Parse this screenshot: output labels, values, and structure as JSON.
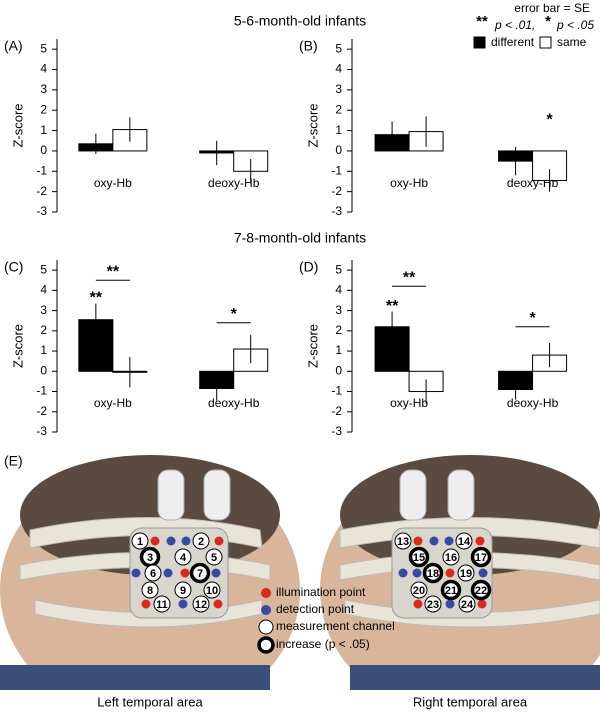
{
  "header": {
    "error_note": "error bar = SE",
    "double_star": "**",
    "double_star_text": "p < .01,",
    "star": "*",
    "star_text": "p < .05"
  },
  "legend": [
    {
      "name": "different",
      "color": "#000000"
    },
    {
      "name": "same",
      "color": "#ffffff"
    }
  ],
  "group_titles": [
    "5-6-month-old infants",
    "7-8-month-old infants"
  ],
  "chart_data": [
    {
      "type": "bar",
      "panel": "(A)",
      "ylabel": "Z-score",
      "categories": [
        "oxy-Hb",
        "deoxy-Hb"
      ],
      "series": [
        {
          "values": [
            0.35,
            -0.1
          ],
          "errors": [
            0.5,
            0.6
          ]
        },
        {
          "values": [
            1.05,
            -1.0
          ],
          "errors": [
            0.6,
            0.6
          ]
        }
      ],
      "ylim": [
        -3,
        5.5
      ],
      "yticks": [
        -3,
        -2,
        -1,
        0,
        1,
        2,
        3,
        4,
        5
      ],
      "annotations": []
    },
    {
      "type": "bar",
      "panel": "(B)",
      "ylabel": "Z-score",
      "categories": [
        "oxy-Hb",
        "deoxy-Hb"
      ],
      "series": [
        {
          "values": [
            0.8,
            -0.5
          ],
          "errors": [
            0.65,
            0.7
          ]
        },
        {
          "values": [
            0.95,
            -1.45
          ],
          "errors": [
            0.75,
            0.55
          ]
        }
      ],
      "ylim": [
        -3,
        5.5
      ],
      "yticks": [
        -3,
        -2,
        -1,
        0,
        1,
        2,
        3,
        4,
        5
      ],
      "annotations": [
        {
          "text": "*",
          "category": 1,
          "series": 1,
          "y": 1.5
        }
      ]
    },
    {
      "type": "bar",
      "panel": "(C)",
      "ylabel": "Z-score",
      "categories": [
        "oxy-Hb",
        "deoxy-Hb"
      ],
      "series": [
        {
          "values": [
            2.55,
            -0.85
          ],
          "errors": [
            0.8,
            0.6
          ]
        },
        {
          "values": [
            -0.05,
            1.1
          ],
          "errors": [
            0.75,
            0.7
          ]
        }
      ],
      "ylim": [
        -3,
        5.5
      ],
      "yticks": [
        -3,
        -2,
        -1,
        0,
        1,
        2,
        3,
        4,
        5
      ],
      "annotations": [
        {
          "text": "**",
          "category": 0,
          "series": 0,
          "y": 3.6
        },
        {
          "text": "**",
          "category": 0,
          "y": 4.5,
          "bracket": true
        },
        {
          "text": "*",
          "category": 1,
          "y": 2.4,
          "bracket": true
        }
      ]
    },
    {
      "type": "bar",
      "panel": "(D)",
      "ylabel": "Z-score",
      "categories": [
        "oxy-Hb",
        "deoxy-Hb"
      ],
      "series": [
        {
          "values": [
            2.2,
            -0.9
          ],
          "errors": [
            0.75,
            0.5
          ]
        },
        {
          "values": [
            -1.0,
            0.8
          ],
          "errors": [
            0.6,
            0.6
          ]
        }
      ],
      "ylim": [
        -3,
        5.5
      ],
      "yticks": [
        -3,
        -2,
        -1,
        0,
        1,
        2,
        3,
        4,
        5
      ],
      "annotations": [
        {
          "text": "**",
          "category": 0,
          "series": 0,
          "y": 3.2
        },
        {
          "text": "**",
          "category": 0,
          "y": 4.2,
          "bracket": true
        },
        {
          "text": "*",
          "category": 1,
          "y": 2.2,
          "bracket": true
        }
      ]
    }
  ],
  "panel_e": {
    "label": "(E)",
    "left_channels": [
      {
        "label": "1",
        "increase": false
      },
      {
        "label": "2",
        "increase": false
      },
      {
        "label": "3",
        "increase": true
      },
      {
        "label": "4",
        "increase": false
      },
      {
        "label": "5",
        "increase": false
      },
      {
        "label": "6",
        "increase": false
      },
      {
        "label": "7",
        "increase": true
      },
      {
        "label": "8",
        "increase": false
      },
      {
        "label": "9",
        "increase": false
      },
      {
        "label": "10",
        "increase": false
      },
      {
        "label": "11",
        "increase": false
      },
      {
        "label": "12",
        "increase": false
      }
    ],
    "right_channels": [
      {
        "label": "13",
        "increase": false
      },
      {
        "label": "14",
        "increase": false
      },
      {
        "label": "15",
        "increase": true
      },
      {
        "label": "16",
        "increase": false
      },
      {
        "label": "17",
        "increase": true
      },
      {
        "label": "18",
        "increase": true
      },
      {
        "label": "19",
        "increase": false
      },
      {
        "label": "20",
        "increase": false
      },
      {
        "label": "21",
        "increase": true
      },
      {
        "label": "22",
        "increase": true
      },
      {
        "label": "23",
        "increase": false
      },
      {
        "label": "24",
        "increase": false
      }
    ],
    "legend": [
      "illumination point",
      "detection point",
      "measurement channel",
      "increase (p < .05)"
    ],
    "captions": [
      "Left temporal area",
      "Right temporal area"
    ]
  }
}
